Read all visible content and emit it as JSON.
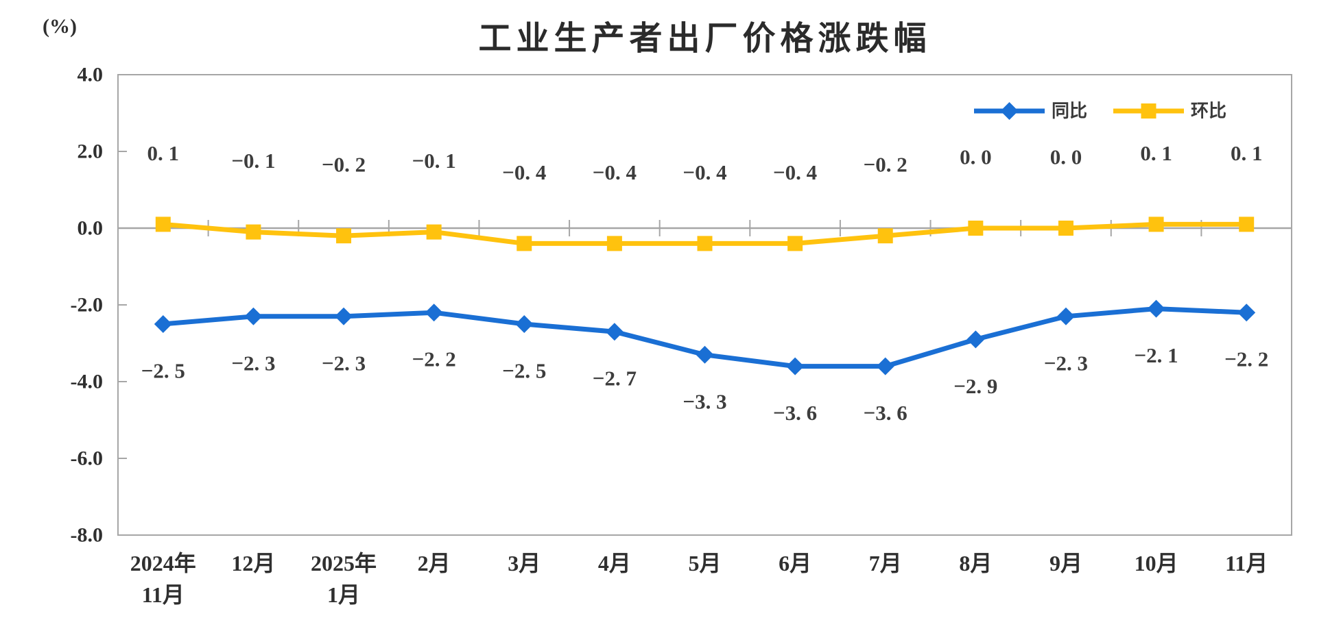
{
  "chart_data": {
    "type": "line",
    "title": "工业生产者出厂价格涨跌幅",
    "unit_label": "(%)",
    "categories": [
      {
        "lines": [
          "2024年",
          "11月"
        ]
      },
      {
        "lines": [
          "12月"
        ]
      },
      {
        "lines": [
          "2025年",
          "1月"
        ]
      },
      {
        "lines": [
          "2月"
        ]
      },
      {
        "lines": [
          "3月"
        ]
      },
      {
        "lines": [
          "4月"
        ]
      },
      {
        "lines": [
          "5月"
        ]
      },
      {
        "lines": [
          "6月"
        ]
      },
      {
        "lines": [
          "7月"
        ]
      },
      {
        "lines": [
          "8月"
        ]
      },
      {
        "lines": [
          "9月"
        ]
      },
      {
        "lines": [
          "10月"
        ]
      },
      {
        "lines": [
          "11月"
        ]
      }
    ],
    "y_axis": {
      "min": -8.0,
      "max": 4.0,
      "step": 2.0,
      "tick_labels": [
        "4.0",
        "2.0",
        "0.0",
        "-2.0",
        "-4.0",
        "-6.0",
        "-8.0"
      ]
    },
    "series": [
      {
        "name": "同比",
        "color": "#1A6FD4",
        "marker": "diamond",
        "label_position": "below",
        "values": [
          -2.5,
          -2.3,
          -2.3,
          -2.2,
          -2.5,
          -2.7,
          -3.3,
          -3.6,
          -3.6,
          -2.9,
          -2.3,
          -2.1,
          -2.2
        ],
        "labels": [
          "−2. 5",
          "−2. 3",
          "−2. 3",
          "−2. 2",
          "−2. 5",
          "−2. 7",
          "−3. 3",
          "−3. 6",
          "−3. 6",
          "−2. 9",
          "−2. 3",
          "−2. 1",
          "−2. 2"
        ]
      },
      {
        "name": "环比",
        "color": "#FFC20E",
        "marker": "square",
        "label_position": "above",
        "values": [
          0.1,
          -0.1,
          -0.2,
          -0.1,
          -0.4,
          -0.4,
          -0.4,
          -0.4,
          -0.2,
          0.0,
          0.0,
          0.1,
          0.1
        ],
        "labels": [
          "0. 1",
          "−0. 1",
          "−0. 2",
          "−0. 1",
          "−0. 4",
          "−0. 4",
          "−0. 4",
          "−0. 4",
          "−0. 2",
          "0. 0",
          "0. 0",
          "0. 1",
          "0. 1"
        ]
      }
    ],
    "legend_position": "top-right",
    "grid": {
      "zero_line": true,
      "plot_border": true,
      "other_gridlines": false
    },
    "colors": {
      "axis": "#A6A6A6",
      "label_text": "#3D3D3D",
      "axis_text": "#2F2F2F",
      "legend_text": "#3A3A3A",
      "title_text": "#2B2B2B"
    }
  }
}
